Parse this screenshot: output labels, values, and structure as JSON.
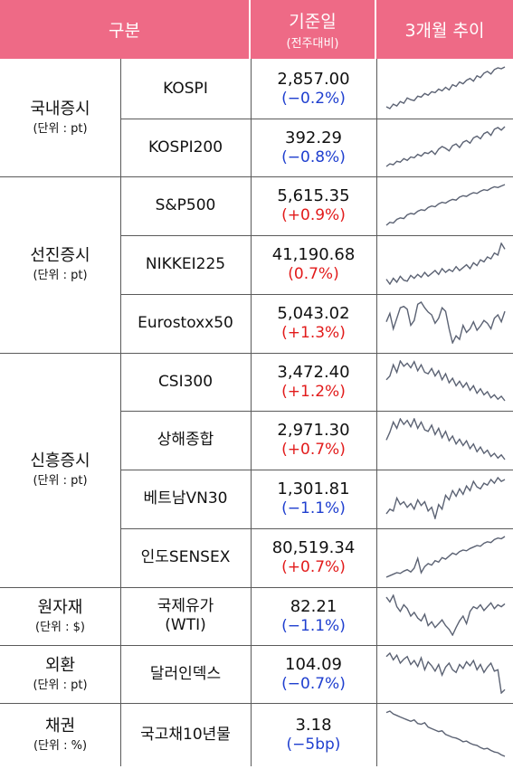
{
  "header": {
    "category": "구분",
    "base_date": "기준일",
    "base_date_sub": "(전주대비)",
    "trend": "3개월 추이"
  },
  "spark_color": "#5b6273",
  "header_color": "#ee6a86",
  "groups": [
    {
      "name": "국내증시",
      "unit": "(단위 : pt)",
      "rows": [
        {
          "name": "KOSPI",
          "value": "2,857.00",
          "change": "(−0.2%)",
          "dir": "neg",
          "trend": [
            30,
            28,
            33,
            31,
            36,
            34,
            40,
            38,
            37,
            42,
            41,
            45,
            43,
            47,
            46,
            50,
            48,
            52,
            49,
            55,
            53,
            58,
            56,
            60,
            62,
            59,
            65,
            63,
            68,
            70,
            67,
            72,
            74,
            73,
            75
          ]
        },
        {
          "name": "KOSPI200",
          "value": "392.29",
          "change": "(−0.8%)",
          "dir": "neg",
          "trend": [
            22,
            25,
            24,
            28,
            27,
            31,
            29,
            33,
            32,
            36,
            34,
            38,
            37,
            40,
            36,
            42,
            45,
            43,
            40,
            46,
            48,
            44,
            50,
            52,
            49,
            55,
            57,
            54,
            60,
            62,
            58,
            65,
            67,
            64,
            68
          ]
        }
      ]
    },
    {
      "name": "선진증시",
      "unit": "(단위 : pt)",
      "rows": [
        {
          "name": "S&P500",
          "value": "5,615.35",
          "change": "(+0.9%)",
          "dir": "pos",
          "trend": [
            20,
            24,
            23,
            28,
            30,
            29,
            34,
            36,
            35,
            39,
            41,
            40,
            44,
            46,
            45,
            49,
            51,
            50,
            53,
            55,
            54,
            58,
            60,
            59,
            62,
            64,
            63,
            66,
            68,
            67,
            70,
            72,
            71,
            73,
            75
          ]
        },
        {
          "name": "NIKKEI225",
          "value": "41,190.68",
          "change": "(0.7%)",
          "dir": "pos",
          "trend": [
            35,
            30,
            36,
            32,
            38,
            34,
            33,
            39,
            36,
            40,
            37,
            42,
            38,
            41,
            44,
            40,
            46,
            42,
            45,
            43,
            48,
            44,
            47,
            50,
            46,
            52,
            49,
            55,
            53,
            58,
            56,
            62,
            60,
            72,
            66
          ]
        },
        {
          "name": "Eurostoxx50",
          "value": "5,043.02",
          "change": "(+1.3%)",
          "dir": "pos",
          "trend": [
            50,
            62,
            40,
            55,
            70,
            72,
            68,
            45,
            52,
            75,
            78,
            70,
            64,
            60,
            48,
            55,
            70,
            65,
            40,
            20,
            30,
            25,
            45,
            35,
            40,
            50,
            38,
            44,
            52,
            48,
            40,
            55,
            60,
            50,
            65
          ]
        }
      ]
    },
    {
      "name": "신흥증시",
      "unit": "(단위 : pt)",
      "rows": [
        {
          "name": "CSI300",
          "value": "3,472.40",
          "change": "(+1.2%)",
          "dir": "pos",
          "trend": [
            50,
            55,
            70,
            60,
            75,
            68,
            72,
            66,
            74,
            62,
            70,
            60,
            58,
            65,
            55,
            62,
            50,
            58,
            46,
            52,
            42,
            48,
            40,
            46,
            36,
            42,
            32,
            38,
            30,
            34,
            26,
            30,
            24,
            28,
            22
          ]
        },
        {
          "name": "상해종합",
          "value": "2,971.30",
          "change": "(+0.7%)",
          "dir": "pos",
          "trend": [
            45,
            55,
            68,
            60,
            72,
            65,
            70,
            62,
            72,
            60,
            68,
            58,
            56,
            64,
            52,
            60,
            48,
            56,
            44,
            50,
            40,
            46,
            38,
            44,
            34,
            40,
            30,
            36,
            28,
            32,
            24,
            28,
            22,
            26,
            20
          ]
        },
        {
          "name": "베트남VN30",
          "value": "1,301.81",
          "change": "(−1.1%)",
          "dir": "neg",
          "trend": [
            35,
            40,
            38,
            52,
            45,
            48,
            42,
            46,
            40,
            50,
            44,
            48,
            38,
            42,
            30,
            45,
            40,
            55,
            50,
            60,
            54,
            62,
            56,
            65,
            60,
            70,
            64,
            62,
            68,
            66,
            72,
            68,
            74,
            70,
            72
          ]
        },
        {
          "name": "인도SENSEX",
          "value": "80,519.34",
          "change": "(+0.7%)",
          "dir": "pos",
          "trend": [
            20,
            22,
            24,
            26,
            25,
            28,
            30,
            27,
            32,
            45,
            26,
            34,
            38,
            36,
            42,
            40,
            46,
            44,
            48,
            52,
            50,
            54,
            56,
            55,
            58,
            60,
            62,
            61,
            65,
            67,
            66,
            70,
            72,
            71,
            74
          ]
        }
      ]
    },
    {
      "name": "원자재",
      "unit": "(단위 : $)",
      "rows": [
        {
          "name": "국제유가\n(WTI)",
          "value": "82.21",
          "change": "(−1.1%)",
          "dir": "neg",
          "trend": [
            70,
            65,
            72,
            60,
            55,
            62,
            58,
            50,
            54,
            48,
            45,
            52,
            40,
            44,
            38,
            42,
            46,
            40,
            36,
            30,
            38,
            45,
            50,
            42,
            55,
            60,
            58,
            62,
            56,
            60,
            64,
            58,
            62,
            60,
            63
          ]
        }
      ]
    },
    {
      "name": "외환",
      "unit": "(단위 : pt)",
      "rows": [
        {
          "name": "달러인덱스",
          "value": "104.09",
          "change": "(−0.7%)",
          "dir": "neg",
          "trend": [
            70,
            75,
            65,
            72,
            60,
            66,
            70,
            58,
            64,
            55,
            68,
            50,
            62,
            56,
            48,
            58,
            42,
            54,
            60,
            50,
            46,
            58,
            52,
            62,
            56,
            64,
            50,
            58,
            46,
            54,
            60,
            48,
            50,
            15,
            20
          ]
        }
      ]
    },
    {
      "name": "채권",
      "unit": "(단위 : %)",
      "rows": [
        {
          "name": "국고채10년물",
          "value": "3.18",
          "change": "(−5bp)",
          "dir": "neg",
          "trend": [
            70,
            72,
            68,
            66,
            64,
            62,
            60,
            58,
            60,
            55,
            54,
            56,
            50,
            48,
            46,
            44,
            45,
            40,
            38,
            36,
            35,
            33,
            30,
            31,
            28,
            26,
            25,
            22,
            20,
            21,
            18,
            16,
            15,
            12,
            10
          ]
        }
      ]
    }
  ]
}
